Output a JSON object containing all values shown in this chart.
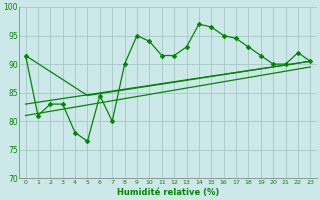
{
  "bg_color": "#cce8e8",
  "grid_color": "#aacccc",
  "line_color": "#008800",
  "marker_color": "#008800",
  "xlabel": "Humidité relative (%)",
  "xlabel_color": "#008800",
  "tick_color": "#008800",
  "xlim": [
    -0.5,
    23.5
  ],
  "ylim": [
    70,
    100
  ],
  "yticks": [
    70,
    75,
    80,
    85,
    90,
    95,
    100
  ],
  "xticks": [
    0,
    1,
    2,
    3,
    4,
    5,
    6,
    7,
    8,
    9,
    10,
    11,
    12,
    13,
    14,
    15,
    16,
    17,
    18,
    19,
    20,
    21,
    22,
    23
  ],
  "series1_x": [
    0,
    1,
    2,
    3,
    4,
    5,
    6,
    7,
    8,
    9,
    10,
    11,
    12,
    13,
    14,
    15,
    16,
    17,
    18,
    19,
    20,
    21,
    22,
    23
  ],
  "series1_y": [
    91.5,
    81,
    83,
    83,
    78,
    76.5,
    84.5,
    80,
    90,
    95,
    94,
    91.5,
    91.5,
    93,
    97,
    96.5,
    95,
    94.5,
    93,
    91.5,
    90,
    90,
    92,
    90.5
  ],
  "series2_x": [
    0,
    5,
    23
  ],
  "series2_y": [
    91.5,
    84.5,
    90.5
  ],
  "series3_x": [
    0,
    23
  ],
  "series3_y": [
    83,
    90.5
  ],
  "series4_x": [
    0,
    23
  ],
  "series4_y": [
    81,
    89.5
  ]
}
